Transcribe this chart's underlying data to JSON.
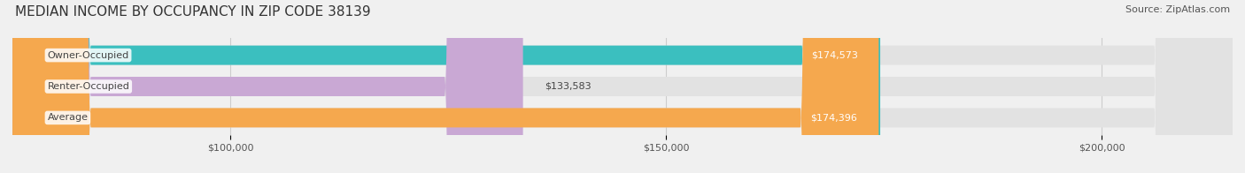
{
  "title": "MEDIAN INCOME BY OCCUPANCY IN ZIP CODE 38139",
  "source": "Source: ZipAtlas.com",
  "categories": [
    "Owner-Occupied",
    "Renter-Occupied",
    "Average"
  ],
  "values": [
    174573,
    133583,
    174396
  ],
  "labels": [
    "$174,573",
    "$133,583",
    "$174,396"
  ],
  "bar_colors": [
    "#3bbfbf",
    "#c9a8d4",
    "#f5a84e"
  ],
  "xlim_min": 75000,
  "xlim_max": 215000,
  "xticks": [
    100000,
    150000,
    200000
  ],
  "xtick_labels": [
    "$100,000",
    "$150,000",
    "$200,000"
  ],
  "background_color": "#f0f0f0",
  "bar_bg_color": "#e2e2e2",
  "title_fontsize": 11,
  "source_fontsize": 8,
  "label_fontsize": 8,
  "category_fontsize": 8
}
